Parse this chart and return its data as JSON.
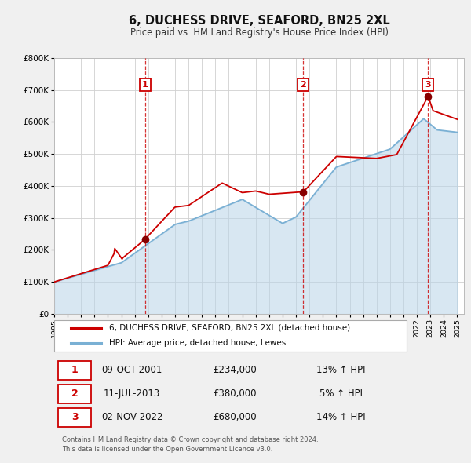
{
  "title": "6, DUCHESS DRIVE, SEAFORD, BN25 2XL",
  "subtitle": "Price paid vs. HM Land Registry's House Price Index (HPI)",
  "ylim": [
    0,
    800000
  ],
  "yticks": [
    0,
    100000,
    200000,
    300000,
    400000,
    500000,
    600000,
    700000,
    800000
  ],
  "ytick_labels": [
    "£0",
    "£100K",
    "£200K",
    "£300K",
    "£400K",
    "£500K",
    "£600K",
    "£700K",
    "£800K"
  ],
  "xlim_start": 1995.0,
  "xlim_end": 2025.5,
  "xticks": [
    1995,
    1996,
    1997,
    1998,
    1999,
    2000,
    2001,
    2002,
    2003,
    2004,
    2005,
    2006,
    2007,
    2008,
    2009,
    2010,
    2011,
    2012,
    2013,
    2014,
    2015,
    2016,
    2017,
    2018,
    2019,
    2020,
    2021,
    2022,
    2023,
    2024,
    2025
  ],
  "bg_color": "#f0f0f0",
  "plot_bg_color": "#ffffff",
  "grid_color": "#d0d0d0",
  "line1_color": "#cc0000",
  "line2_color": "#7ab0d4",
  "line2_fill_color": "#b8d4e8",
  "sale_marker_color": "#880000",
  "vline_color": "#cc0000",
  "sale1_x": 2001.77,
  "sale1_y": 234000,
  "sale1_label": "1",
  "sale2_x": 2013.52,
  "sale2_y": 380000,
  "sale2_label": "2",
  "sale3_x": 2022.83,
  "sale3_y": 680000,
  "sale3_label": "3",
  "legend_label1": "6, DUCHESS DRIVE, SEAFORD, BN25 2XL (detached house)",
  "legend_label2": "HPI: Average price, detached house, Lewes",
  "table_rows": [
    {
      "num": "1",
      "date": "09-OCT-2001",
      "price": "£234,000",
      "hpi": "13% ↑ HPI"
    },
    {
      "num": "2",
      "date": "11-JUL-2013",
      "price": "£380,000",
      "hpi": "5% ↑ HPI"
    },
    {
      "num": "3",
      "date": "02-NOV-2022",
      "price": "£680,000",
      "hpi": "14% ↑ HPI"
    }
  ],
  "footer": "Contains HM Land Registry data © Crown copyright and database right 2024.\nThis data is licensed under the Open Government Licence v3.0."
}
